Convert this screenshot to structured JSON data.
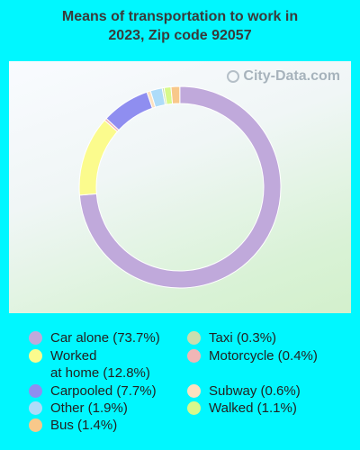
{
  "title_line1": "Means of transportation to work in",
  "title_line2": "2023, Zip code 92057",
  "watermark": "City-Data.com",
  "chart_data": {
    "type": "pie",
    "donut": true,
    "title": "Means of transportation to work in 2023, Zip code 92057",
    "slices": [
      {
        "label": "Car alone",
        "value": 73.7,
        "display": "Car alone (73.7%)",
        "color": "#c0a9db"
      },
      {
        "label": "Worked at home",
        "value": 12.8,
        "display_lines": [
          "Worked",
          "at home (12.8%)"
        ],
        "color": "#fbfb8d"
      },
      {
        "label": "Motorcycle",
        "value": 0.4,
        "display": "Motorcycle (0.4%)",
        "color": "#f1b6b6"
      },
      {
        "label": "Carpooled",
        "value": 7.7,
        "display": "Carpooled (7.7%)",
        "color": "#8f8ef0"
      },
      {
        "label": "Subway",
        "value": 0.6,
        "display": "Subway (0.6%)",
        "color": "#fde1c0"
      },
      {
        "label": "Other",
        "value": 1.9,
        "display": "Other (1.9%)",
        "color": "#aedcf9"
      },
      {
        "label": "Taxi",
        "value": 0.3,
        "display": "Taxi (0.3%)",
        "color": "#c9dfae"
      },
      {
        "label": "Walked",
        "value": 1.1,
        "display": "Walked (1.1%)",
        "color": "#d7f98b"
      },
      {
        "label": "Bus",
        "value": 1.4,
        "display": "Bus (1.4%)",
        "color": "#f8c88a"
      }
    ]
  },
  "legend": {
    "car_alone": "Car alone (73.7%)",
    "worked_line1": "Worked",
    "worked_line2": "at home (12.8%)",
    "carpooled": "Carpooled (7.7%)",
    "other": "Other (1.9%)",
    "bus": "Bus (1.4%)",
    "taxi": "Taxi (0.3%)",
    "motorcycle": "Motorcycle (0.4%)",
    "subway": "Subway (0.6%)",
    "walked": "Walked (1.1%)"
  }
}
